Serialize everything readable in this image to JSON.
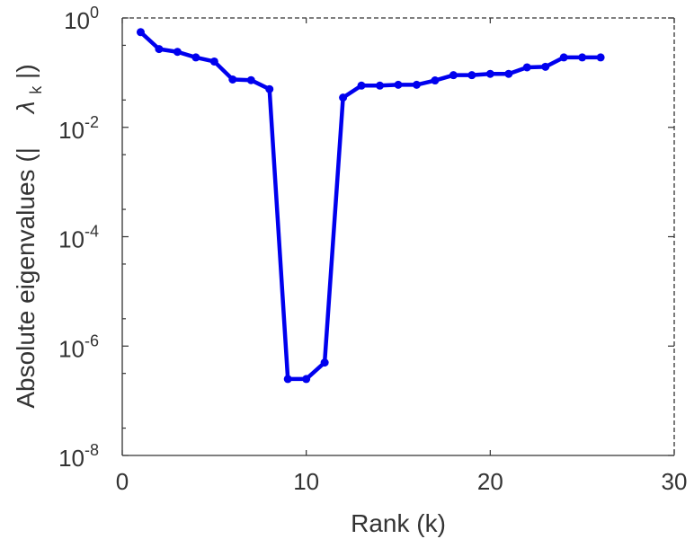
{
  "chart_data": {
    "type": "line",
    "title": "",
    "xlabel": "Rank (k)",
    "ylabel_prefix": "Absolute eigenvalues (|",
    "ylabel_symbol": "λ",
    "ylabel_subscript": "k",
    "ylabel_suffix": "|)",
    "xlim": [
      0,
      30
    ],
    "ylim": [
      1e-08,
      1
    ],
    "yscale": "log",
    "grid": false,
    "series_color": "#0000ee",
    "x_ticks": [
      {
        "value": 0,
        "label": "0"
      },
      {
        "value": 10,
        "label": "10"
      },
      {
        "value": 20,
        "label": "20"
      },
      {
        "value": 30,
        "label": "30"
      }
    ],
    "y_ticks": [
      {
        "value": 1e-08,
        "base": "10",
        "exp": "-8"
      },
      {
        "value": 1e-06,
        "base": "10",
        "exp": "-6"
      },
      {
        "value": 0.0001,
        "base": "10",
        "exp": "-4"
      },
      {
        "value": 0.01,
        "base": "10",
        "exp": "-2"
      },
      {
        "value": 1,
        "base": "10",
        "exp": "0"
      }
    ],
    "series": [
      {
        "x": [
          1,
          2,
          3,
          4,
          5,
          6,
          7,
          8,
          9,
          10,
          11,
          12,
          13,
          14,
          15,
          16,
          17,
          18,
          19,
          20,
          21,
          22,
          23,
          24,
          25,
          26
        ],
        "y": [
          0.55,
          0.27,
          0.24,
          0.19,
          0.16,
          0.075,
          0.073,
          0.05,
          2.5e-07,
          2.5e-07,
          5e-07,
          0.035,
          0.058,
          0.058,
          0.06,
          0.06,
          0.072,
          0.09,
          0.09,
          0.095,
          0.095,
          0.125,
          0.128,
          0.19,
          0.19,
          0.19
        ]
      }
    ]
  }
}
